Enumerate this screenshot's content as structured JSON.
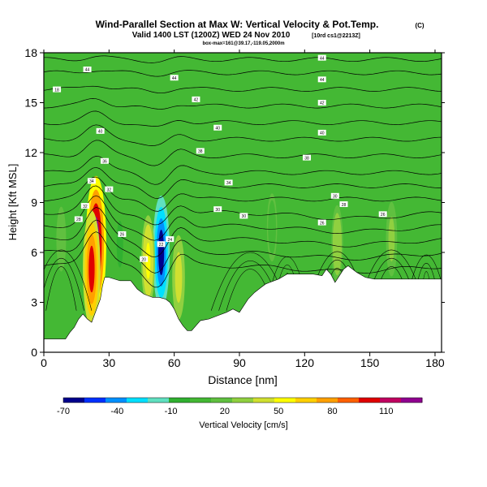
{
  "chart_data": {
    "type": "heatmap",
    "title": "Wind-Parallel Section at Max W: Vertical Velocity & Pot.Temp.",
    "copyright": "(C)",
    "subtitle": "Valid 1400 LST (1200Z) WED 24 Nov 2010",
    "subtitle_tag": "[10rd cs1@2213Z]",
    "subtitle2": "box-max=161@39.17,-119.05,2000m",
    "xlabel": "Distance [nm]",
    "ylabel": "Height [Kft MSL]",
    "xlim": [
      0,
      183
    ],
    "ylim": [
      0,
      18
    ],
    "xticks": [
      0,
      30,
      60,
      90,
      120,
      150,
      180
    ],
    "yticks": [
      0,
      3,
      6,
      9,
      12,
      15,
      18
    ],
    "colorbar": {
      "label": "Vertical Velocity [cm/s]",
      "ticks": [
        -70,
        -40,
        -10,
        20,
        50,
        80,
        110
      ],
      "range": [
        -70,
        130
      ],
      "colors": [
        "#00008c",
        "#0030ff",
        "#0090ff",
        "#00e0ff",
        "#60e0c0",
        "#30b030",
        "#44b834",
        "#60c040",
        "#90d040",
        "#d0e030",
        "#ffff00",
        "#ffd000",
        "#ffa000",
        "#ff6000",
        "#e00000",
        "#c00060",
        "#900090"
      ]
    },
    "terrain_profile": {
      "x": [
        0,
        10,
        12,
        14,
        16,
        18,
        20,
        22,
        24,
        26,
        27,
        28,
        30,
        35,
        40,
        43,
        46,
        50,
        53,
        56,
        58,
        60,
        62,
        64,
        66,
        68,
        70,
        72,
        76,
        80,
        84,
        87,
        90,
        94,
        97,
        100,
        102,
        104,
        108,
        112,
        116,
        120,
        124,
        128,
        130,
        132,
        134,
        136,
        138,
        140,
        144,
        148,
        152,
        156,
        160,
        164,
        168,
        172,
        176,
        180,
        183
      ],
      "height": [
        0.8,
        0.8,
        1.2,
        1.5,
        2.0,
        2.3,
        2.0,
        1.8,
        2.5,
        3.2,
        4.0,
        4.5,
        4.5,
        4.3,
        4.3,
        3.8,
        3.5,
        3.3,
        3.3,
        3.2,
        3.0,
        2.6,
        2.0,
        1.6,
        1.3,
        1.3,
        1.6,
        1.9,
        2.0,
        2.2,
        2.4,
        2.6,
        2.4,
        3.2,
        3.6,
        3.9,
        4.1,
        4.2,
        4.4,
        4.7,
        4.7,
        4.7,
        4.7,
        4.6,
        5.0,
        4.7,
        4.2,
        4.6,
        5.0,
        5.2,
        4.8,
        4.5,
        4.4,
        4.4,
        4.4,
        4.4,
        4.4,
        4.4,
        4.4,
        4.4,
        4.4
      ]
    },
    "updraft_cores": [
      {
        "x": 24,
        "z": 6.5,
        "value": 125
      },
      {
        "x": 22,
        "z": 5.0,
        "value": 95
      },
      {
        "x": 54,
        "z": 6.0,
        "value": -60
      },
      {
        "x": 48,
        "z": 5.5,
        "value": 55
      },
      {
        "x": 62,
        "z": 4.5,
        "value": 45
      },
      {
        "x": 35,
        "z": 6.5,
        "value": -5
      },
      {
        "x": 8,
        "z": 6.8,
        "value": 15
      },
      {
        "x": 105,
        "z": 7.5,
        "value": 10
      },
      {
        "x": 135,
        "z": 6.5,
        "value": 35
      },
      {
        "x": 160,
        "z": 6.8,
        "value": 30
      }
    ],
    "isentrope_labels": [
      {
        "x": 20,
        "z": 17.0,
        "text": "44"
      },
      {
        "x": 6,
        "z": 15.8,
        "text": "18"
      },
      {
        "x": 60,
        "z": 16.5,
        "text": "44"
      },
      {
        "x": 70,
        "z": 15.2,
        "text": "42"
      },
      {
        "x": 128,
        "z": 17.7,
        "text": "44"
      },
      {
        "x": 128,
        "z": 16.4,
        "text": "44"
      },
      {
        "x": 128,
        "z": 15.0,
        "text": "42"
      },
      {
        "x": 26,
        "z": 13.3,
        "text": "40"
      },
      {
        "x": 80,
        "z": 13.5,
        "text": "40"
      },
      {
        "x": 128,
        "z": 13.2,
        "text": "40"
      },
      {
        "x": 72,
        "z": 12.1,
        "text": "38"
      },
      {
        "x": 121,
        "z": 11.7,
        "text": "38"
      },
      {
        "x": 28,
        "z": 11.5,
        "text": "36"
      },
      {
        "x": 22,
        "z": 10.3,
        "text": "34"
      },
      {
        "x": 85,
        "z": 10.2,
        "text": "34"
      },
      {
        "x": 19,
        "z": 8.8,
        "text": "32"
      },
      {
        "x": 30,
        "z": 9.8,
        "text": "32"
      },
      {
        "x": 80,
        "z": 8.6,
        "text": "30"
      },
      {
        "x": 92,
        "z": 8.2,
        "text": "30"
      },
      {
        "x": 134,
        "z": 9.4,
        "text": "30"
      },
      {
        "x": 138,
        "z": 8.9,
        "text": "28"
      },
      {
        "x": 16,
        "z": 8.0,
        "text": "28"
      },
      {
        "x": 36,
        "z": 7.1,
        "text": "26"
      },
      {
        "x": 128,
        "z": 7.8,
        "text": "26"
      },
      {
        "x": 156,
        "z": 8.3,
        "text": "26"
      },
      {
        "x": 58,
        "z": 6.8,
        "text": "24"
      },
      {
        "x": 54,
        "z": 6.5,
        "text": "22"
      },
      {
        "x": 46,
        "z": 5.6,
        "text": "20"
      }
    ]
  }
}
